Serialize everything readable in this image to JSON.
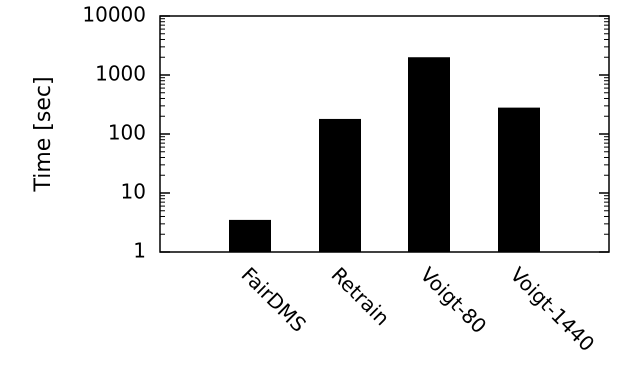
{
  "chart_data": {
    "type": "bar",
    "categories": [
      "FairDMS",
      "Retrain",
      "Voigt-80",
      "Voigt-1440"
    ],
    "values": [
      3.5,
      180,
      2000,
      280
    ],
    "ylabel": "Time [sec]",
    "yscale": "log",
    "ylim": [
      1,
      10000
    ],
    "yticks": [
      1,
      10,
      100,
      1000,
      10000
    ],
    "ytick_labels": [
      "1",
      "10",
      "100",
      "1000",
      "10000"
    ],
    "bar_color": "#000000",
    "grid": false,
    "legend": "none"
  }
}
